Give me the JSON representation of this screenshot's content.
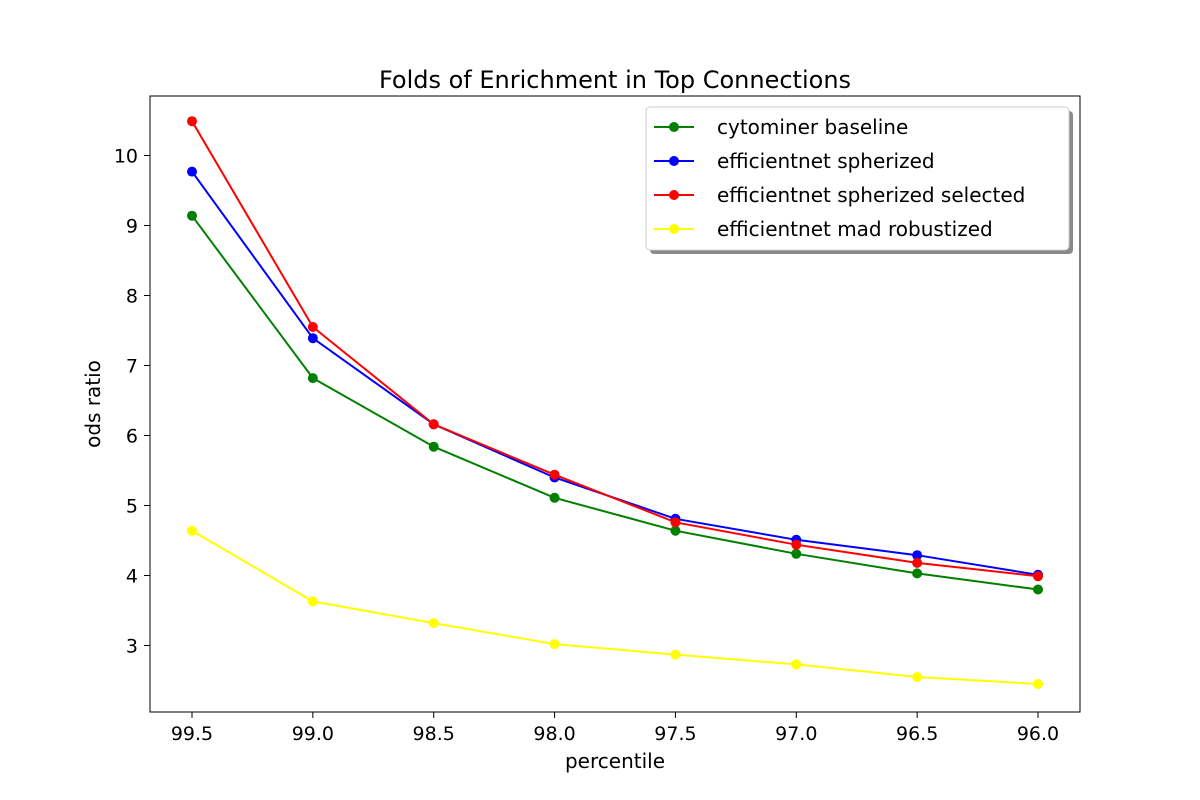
{
  "chart_data": {
    "type": "line",
    "title": "Folds of Enrichment in Top Connections",
    "xlabel": "percentile",
    "ylabel": "ods ratio",
    "x": [
      99.5,
      99.0,
      98.5,
      98.0,
      97.5,
      97.0,
      96.5,
      96.0
    ],
    "x_tick_labels": [
      "99.5",
      "99.0",
      "98.5",
      "98.0",
      "97.5",
      "97.0",
      "96.5",
      "96.0"
    ],
    "x_reversed": true,
    "y_ticks": [
      3,
      4,
      5,
      6,
      7,
      8,
      9,
      10
    ],
    "ylim": [
      2.05,
      10.85
    ],
    "grid": false,
    "legend_position": "top-right",
    "series": [
      {
        "name": "cytominer baseline",
        "color": "#008000",
        "values": [
          9.14,
          6.82,
          5.84,
          5.11,
          4.64,
          4.31,
          4.03,
          3.8
        ]
      },
      {
        "name": "efficientnet spherized",
        "color": "#0000ff",
        "values": [
          9.77,
          7.39,
          6.16,
          5.4,
          4.81,
          4.51,
          4.29,
          4.01
        ]
      },
      {
        "name": "efficientnet spherized selected",
        "color": "#ff0000",
        "values": [
          10.49,
          7.55,
          6.16,
          5.44,
          4.76,
          4.44,
          4.18,
          3.99
        ]
      },
      {
        "name": "efficientnet mad robustized",
        "color": "#ffff00",
        "values": [
          4.64,
          3.63,
          3.32,
          3.02,
          2.87,
          2.73,
          2.55,
          2.45
        ]
      }
    ]
  }
}
